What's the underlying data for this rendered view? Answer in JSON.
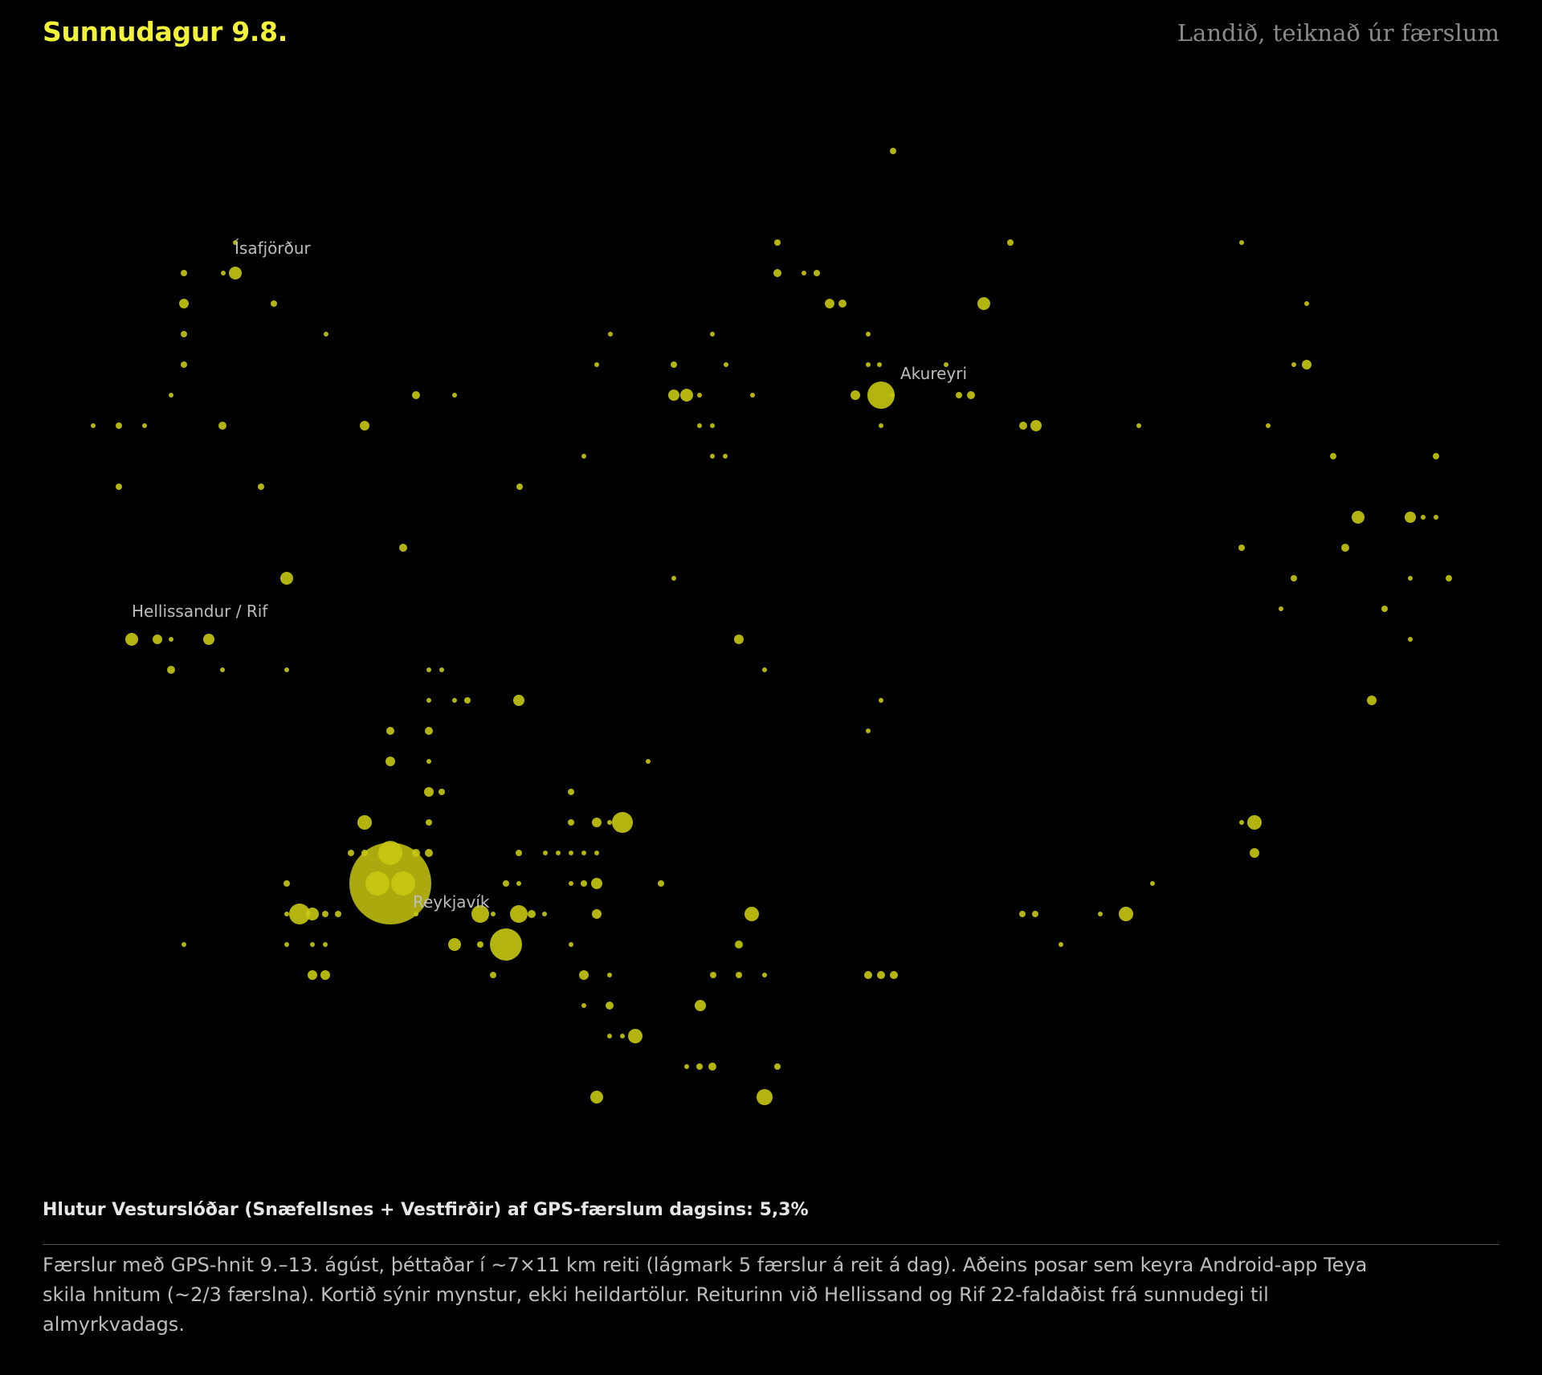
{
  "header": {
    "title": "Sunnudagur 9.8.",
    "subtitle": "Landið, teiknað úr færslum"
  },
  "colors": {
    "background": "#000000",
    "accent": "#f2f23a",
    "dot": "#c8c812",
    "label": "#bdbdbd"
  },
  "map": {
    "labels": [
      {
        "id": "isafjordur",
        "text": "Ísafjörður"
      },
      {
        "id": "akureyri",
        "text": "Akureyri"
      },
      {
        "id": "hellissandur",
        "text": "Hellissandur / Rif"
      },
      {
        "id": "reykjavik",
        "text": "Reykjavík"
      }
    ]
  },
  "footer": {
    "stat": "Hlutur Vesturslóðar (Snæfellsnes + Vestfirðir) af GPS-færslum dagsins: 5,3%",
    "note": "Færslur með GPS-hnit 9.–13. ágúst, þéttaðar í ~7×11 km reiti (lágmark 5 færslur á reit á dag). Aðeins posar sem keyra Android-app Teya skila hnitum (~2/3 færslna). Kortið sýnir mynstur, ekki heildartölur. Reiturinn við Hellissand og Rif 22-faldaðist frá sunnudegi til almyrkvadags."
  }
}
